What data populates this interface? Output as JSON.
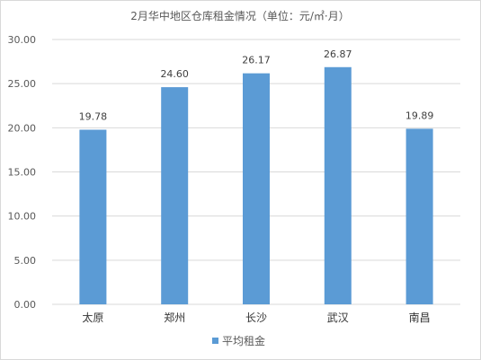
{
  "chart_data": {
    "type": "bar",
    "title": "2月华中地区仓库租金情况（单位：元/㎡·月）",
    "categories": [
      "太原",
      "郑州",
      "长沙",
      "武汉",
      "南昌"
    ],
    "series": [
      {
        "name": "平均租金",
        "values": [
          19.78,
          24.6,
          26.17,
          26.87,
          19.89
        ]
      }
    ],
    "value_labels": [
      "19.78",
      "24.60",
      "26.17",
      "26.87",
      "19.89"
    ],
    "ylim": [
      0,
      30
    ],
    "yticks": [
      "0.00",
      "5.00",
      "10.00",
      "15.00",
      "20.00",
      "25.00",
      "30.00"
    ],
    "grid": true,
    "legend_position": "bottom",
    "colors": {
      "bar": "#5b9bd5"
    }
  }
}
